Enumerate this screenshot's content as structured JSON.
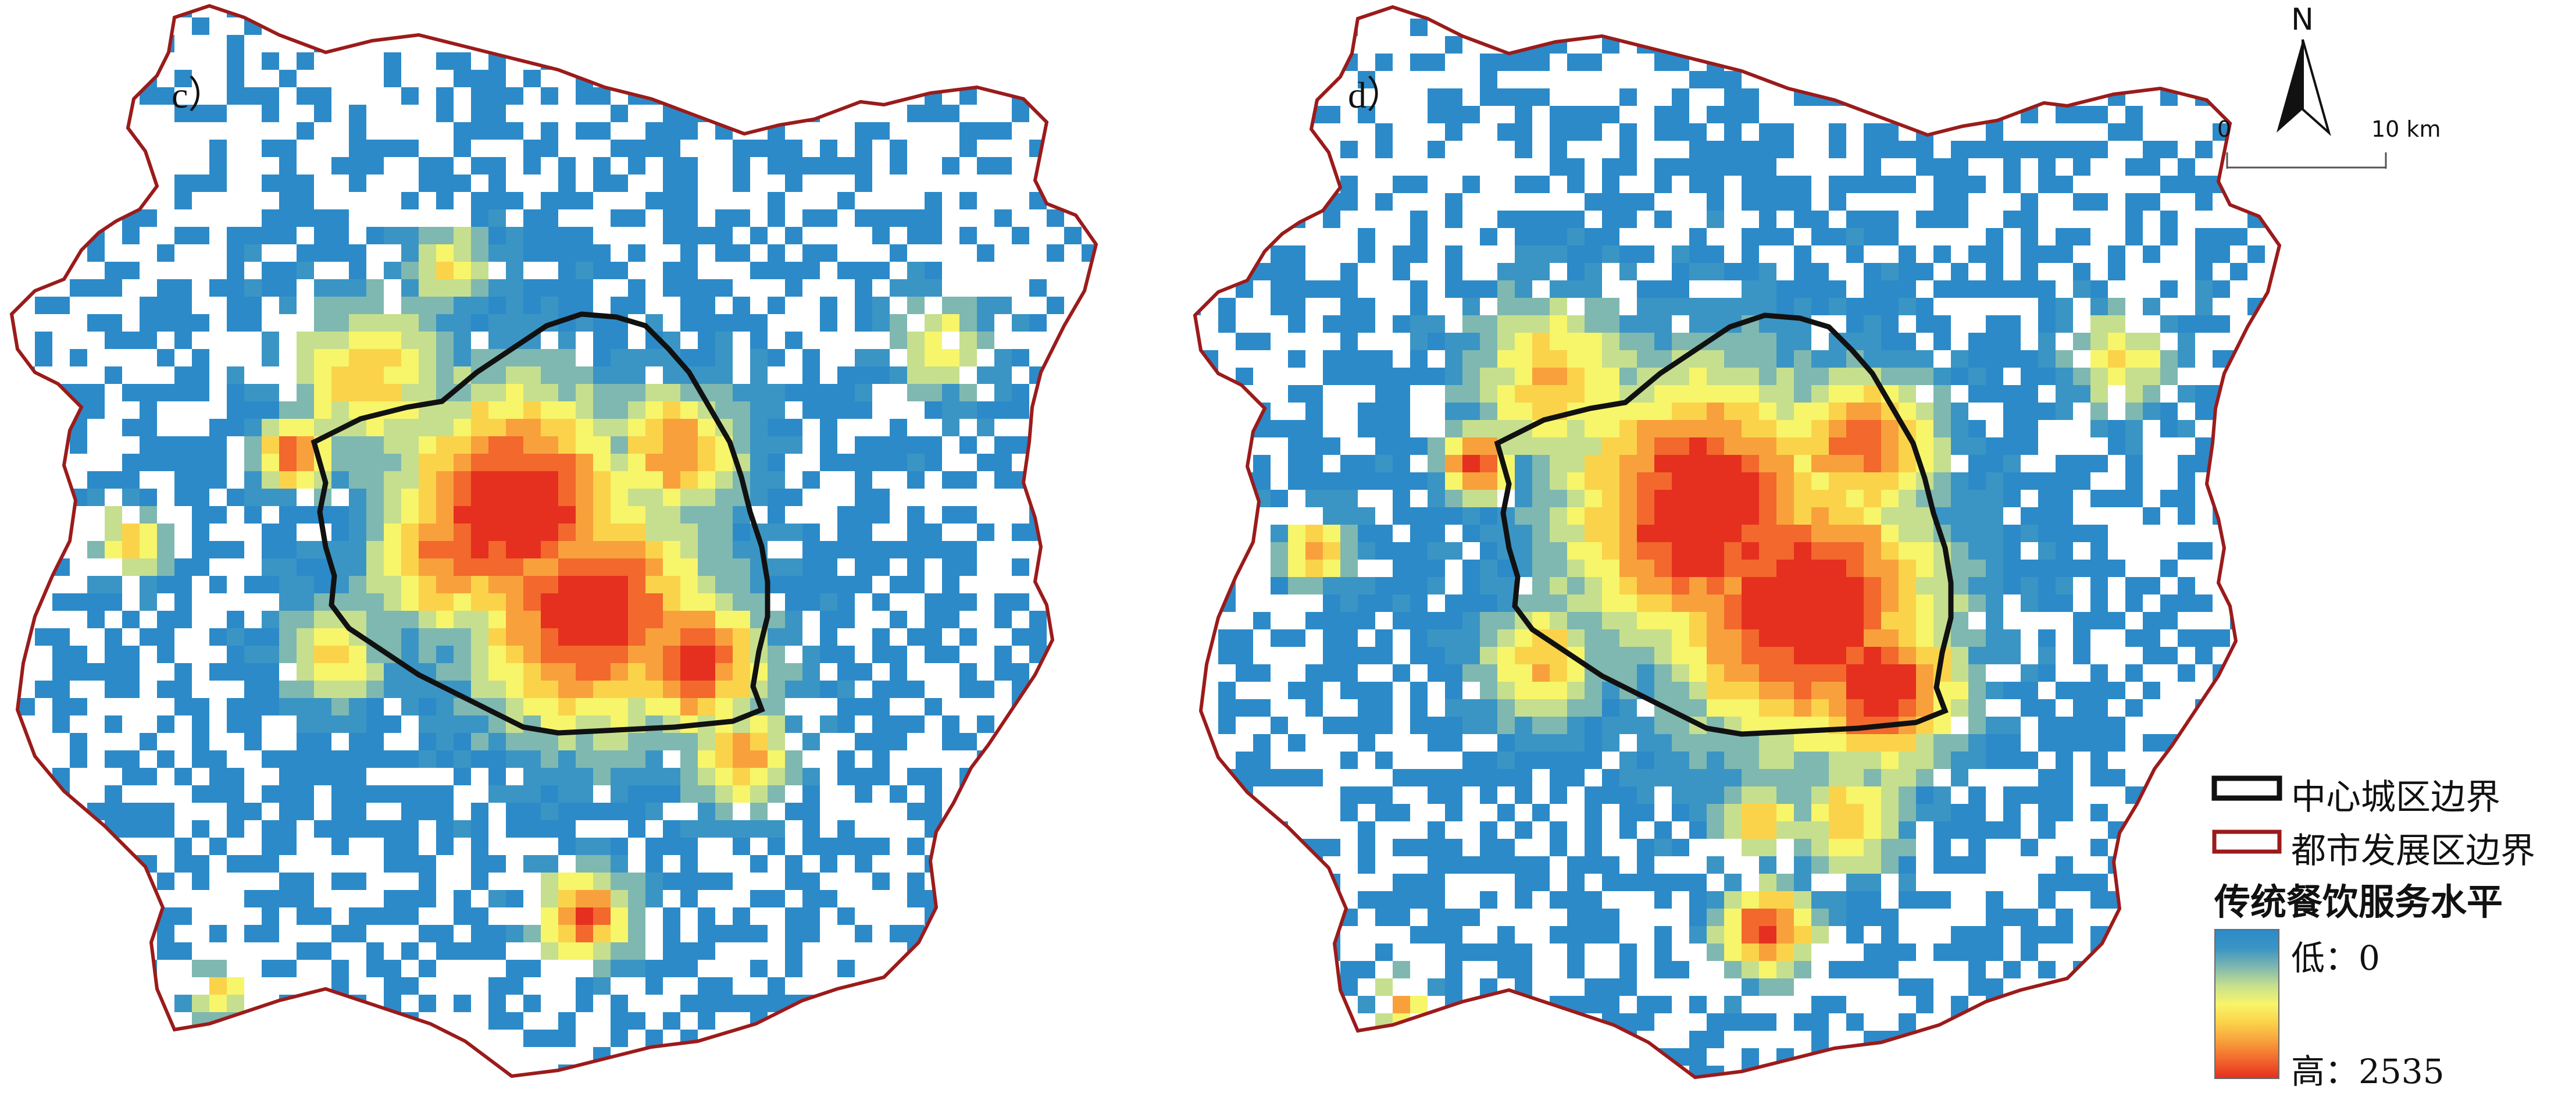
{
  "panels": [
    {
      "label": "c）",
      "seed": 17,
      "mode": "c"
    },
    {
      "label": "d）",
      "seed": 91,
      "mode": "d"
    }
  ],
  "legend": {
    "center_boundary": "中心城区边界",
    "metro_boundary": "都市发展区边界",
    "title": "传统餐饮服务水平",
    "low": "低：0",
    "high": "高：2535"
  },
  "scale_bar": {
    "start": "0",
    "end": "10 km"
  },
  "north_label": "N",
  "colors": {
    "ramp": [
      "#2c8ac8",
      "#3a95c5",
      "#7fb8b0",
      "#c6df8e",
      "#f7f56a",
      "#fbd34a",
      "#f8a13c",
      "#f2682d",
      "#e5301f"
    ],
    "center_boundary": "#111111",
    "metro_boundary": "#9b1b1b"
  }
}
